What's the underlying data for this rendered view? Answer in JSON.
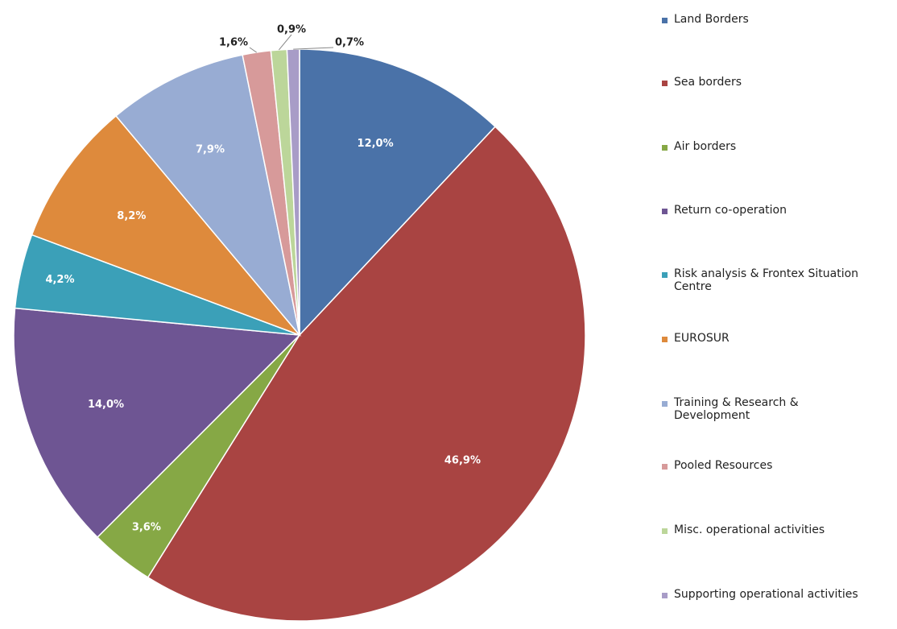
{
  "chart_data": {
    "type": "pie",
    "categories": [
      "Land Borders",
      "Sea borders",
      "Air borders",
      "Return co-operation",
      "Risk analysis & Frontex Situation Centre",
      "EUROSUR",
      "Training & Research & Development",
      "Pooled Resources",
      "Misc. operational activities",
      "Supporting operational activities"
    ],
    "values": [
      12.0,
      46.9,
      3.6,
      14.0,
      4.2,
      8.2,
      7.9,
      1.6,
      0.9,
      0.7
    ],
    "value_labels": [
      "12,0%",
      "46,9%",
      "3,6%",
      "14,0%",
      "4,2%",
      "8,2%",
      "7,9%",
      "1,6%",
      "0,9%",
      "0,7%"
    ],
    "colors": [
      "#4a72a8",
      "#a94442",
      "#86a845",
      "#6e5593",
      "#3ba0b8",
      "#de8a3c",
      "#98acd3",
      "#d79a9a",
      "#bcd69a",
      "#a89cc7"
    ],
    "legend": "right"
  }
}
